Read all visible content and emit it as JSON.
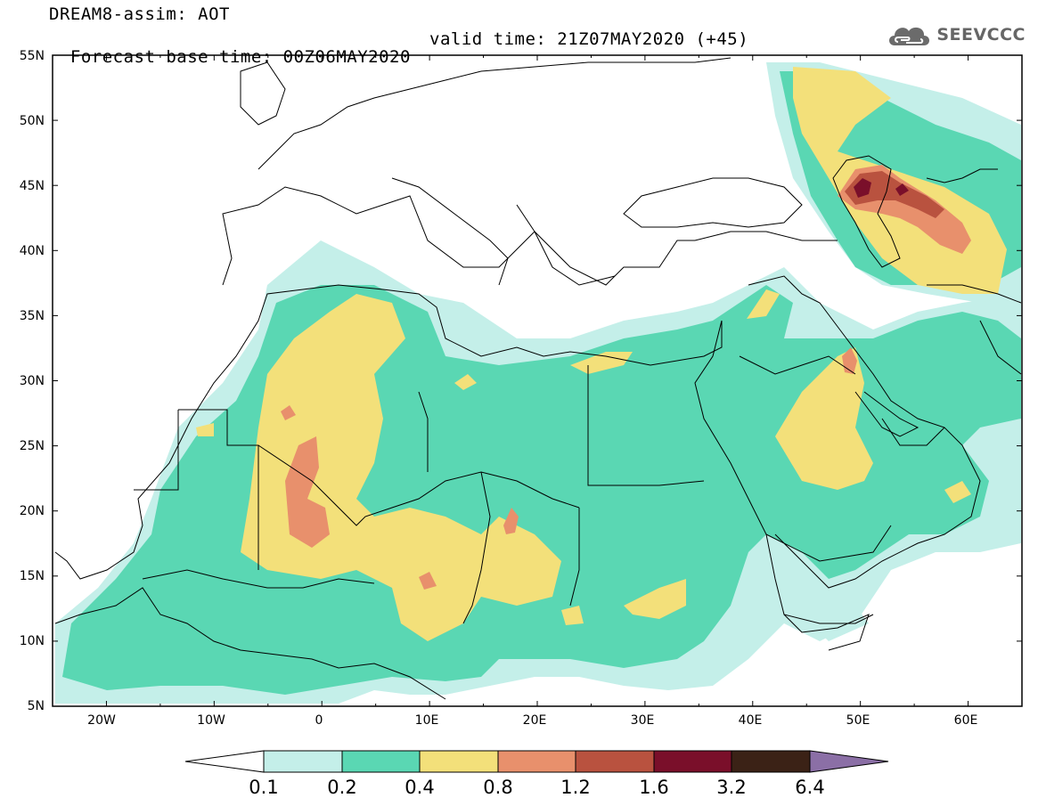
{
  "title": {
    "line1": "DREAM8-assim: AOT",
    "base": "Forecast base time: 00Z06MAY2020",
    "valid": "valid time: 21Z07MAY2020 (+45)"
  },
  "logo": {
    "text": "SEEVCCC",
    "icon": "cloud-icon"
  },
  "map": {
    "region": "North Africa, Middle East and Southern Europe",
    "lon_range": [
      -25,
      65
    ],
    "lat_range": [
      5,
      55
    ],
    "x_ticks": [
      "20W",
      "10W",
      "0",
      "10E",
      "20E",
      "30E",
      "40E",
      "50E",
      "60E"
    ],
    "y_ticks": [
      "55N",
      "50N",
      "45N",
      "40N",
      "35N",
      "30N",
      "25N",
      "20N",
      "15N",
      "10N",
      "5N"
    ]
  },
  "colorbar": {
    "labels": [
      "0.1",
      "0.2",
      "0.4",
      "0.8",
      "1.2",
      "1.6",
      "3.2",
      "6.4"
    ],
    "colors": [
      "#c4efe9",
      "#5ad7b3",
      "#f3e07a",
      "#e8906c",
      "#b9523f",
      "#7a0f2a",
      "#3b2216",
      "#8b6fa6"
    ],
    "extend": "both"
  },
  "legend_colors": {
    "c1": "#c4efe9",
    "c2": "#5ad7b3",
    "c3": "#f3e07a",
    "c4": "#e8906c",
    "c5": "#b9523f",
    "c6": "#7a0f2a"
  }
}
